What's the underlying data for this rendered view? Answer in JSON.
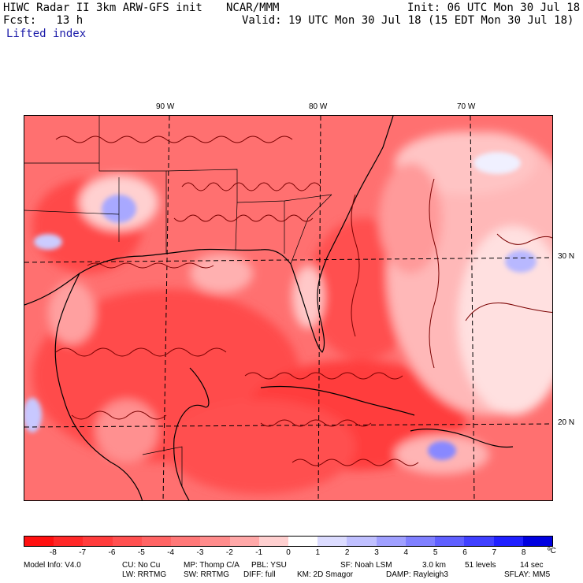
{
  "header": {
    "title": "HIWC Radar II 3km ARW-GFS init",
    "org": "NCAR/MMM",
    "init": "Init: 06 UTC Mon 30 Jul 18",
    "fcst": "Fcst:   13 h",
    "valid": "Valid: 19 UTC Mon 30 Jul 18 (15 EDT Mon 30 Jul 18)",
    "field": "Lifted index"
  },
  "map": {
    "lon_labels": [
      "90 W",
      "80 W",
      "70 W"
    ],
    "lat_labels": [
      "30 N",
      "20 N"
    ]
  },
  "colorbar": {
    "ticks": [
      "-8",
      "-7",
      "-6",
      "-5",
      "-4",
      "-3",
      "-2",
      "-1",
      "0",
      "1",
      "2",
      "3",
      "4",
      "5",
      "6",
      "7",
      "8"
    ],
    "unit": "ºC",
    "colors": [
      "#ff1010",
      "#ff2828",
      "#ff3c3c",
      "#ff5050",
      "#ff6464",
      "#ff7878",
      "#ff8c8c",
      "#ffa8a8",
      "#ffd0d0",
      "#ffffff",
      "#dcdcff",
      "#c0c0ff",
      "#a0a0ff",
      "#8080ff",
      "#6060ff",
      "#4040ff",
      "#2020ff",
      "#0000e0"
    ]
  },
  "footer": {
    "line1": [
      {
        "k": "model",
        "t": "Model Info: V4.0"
      },
      {
        "k": "cu",
        "t": "CU: No Cu"
      },
      {
        "k": "mp",
        "t": "MP: Thomp C/A"
      },
      {
        "k": "pbl",
        "t": "PBL: YSU"
      },
      {
        "k": "sf",
        "t": "SF: Noah LSM"
      },
      {
        "k": "res",
        "t": "3.0 km"
      },
      {
        "k": "lev",
        "t": "51 levels"
      },
      {
        "k": "dt",
        "t": "14 sec"
      }
    ],
    "line2": [
      {
        "k": "lw",
        "t": "LW: RRTMG"
      },
      {
        "k": "sw",
        "t": "SW: RRTMG"
      },
      {
        "k": "diff",
        "t": "DIFF: full"
      },
      {
        "k": "km",
        "t": "KM: 2D Smagor"
      },
      {
        "k": "damp",
        "t": "DAMP: Rayleigh3"
      },
      {
        "k": "sflay",
        "t": "SFLAY: MM5"
      }
    ]
  }
}
